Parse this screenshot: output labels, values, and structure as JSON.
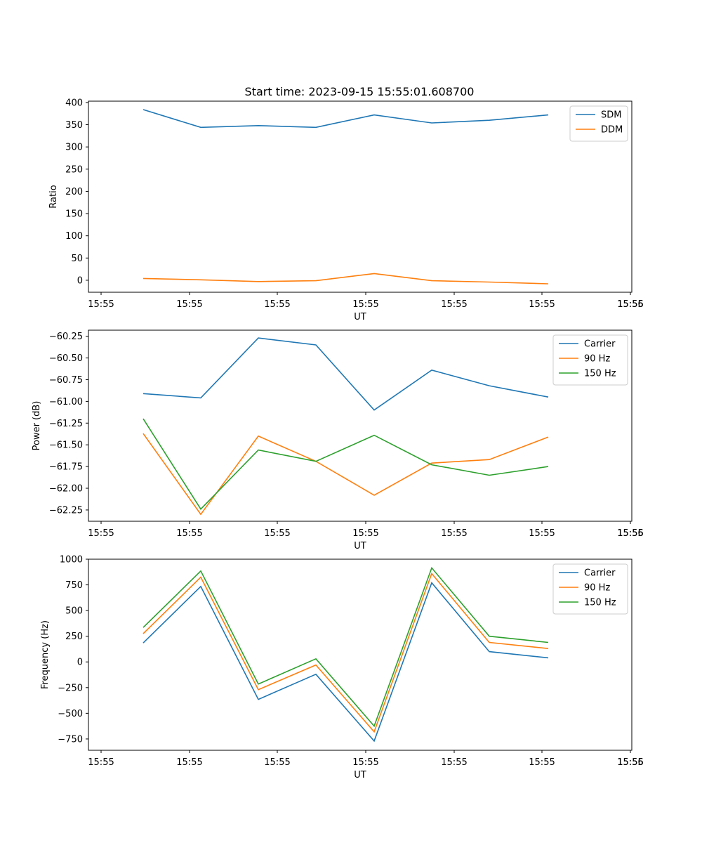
{
  "figure": {
    "title": "Start time: 2023-09-15 15:55:01.608700"
  },
  "chart_data": [
    {
      "type": "line",
      "title": "Start time: 2023-09-15 15:55:01.608700",
      "xlabel": "UT",
      "ylabel": "Ratio",
      "x_tick_labels": [
        "15:55",
        "15:55",
        "15:55",
        "15:55",
        "15:55",
        "15:55",
        "15:55"
      ],
      "x_end_tick_label": "15:56",
      "y_ticks": [
        0,
        50,
        100,
        150,
        200,
        250,
        300,
        350,
        400
      ],
      "y_tick_labels": [
        "0",
        "50",
        "100",
        "150",
        "200",
        "250",
        "300",
        "350",
        "400"
      ],
      "ylim": [
        -27,
        403
      ],
      "legend_position": "top-right",
      "series": [
        {
          "name": "SDM",
          "color": "#1f77b4",
          "values": [
            384,
            344,
            348,
            344,
            372,
            354,
            360,
            372
          ]
        },
        {
          "name": "DDM",
          "color": "#ff7f0e",
          "values": [
            4,
            1,
            -3,
            -1,
            15,
            -1,
            -4,
            -8
          ]
        }
      ]
    },
    {
      "type": "line",
      "title": "",
      "xlabel": "UT",
      "ylabel": "Power (dB)",
      "x_tick_labels": [
        "15:55",
        "15:55",
        "15:55",
        "15:55",
        "15:55",
        "15:55",
        "15:55"
      ],
      "x_end_tick_label": "15:56",
      "y_ticks": [
        -62.25,
        -62.0,
        -61.75,
        -61.5,
        -61.25,
        -61.0,
        -60.75,
        -60.5,
        -60.25
      ],
      "y_tick_labels": [
        "−62.25",
        "−62.00",
        "−61.75",
        "−61.50",
        "−61.25",
        "−61.00",
        "−60.75",
        "−60.50",
        "−60.25"
      ],
      "ylim": [
        -62.38,
        -60.18
      ],
      "legend_position": "top-right",
      "series": [
        {
          "name": "Carrier",
          "color": "#1f77b4",
          "values": [
            -60.91,
            -60.96,
            -60.27,
            -60.35,
            -61.1,
            -60.64,
            -60.82,
            -60.95
          ]
        },
        {
          "name": "90 Hz",
          "color": "#ff7f0e",
          "values": [
            -61.37,
            -62.3,
            -61.4,
            -61.69,
            -62.08,
            -61.71,
            -61.67,
            -61.41
          ]
        },
        {
          "name": "150 Hz",
          "color": "#2ca02c",
          "values": [
            -61.2,
            -62.24,
            -61.56,
            -61.69,
            -61.39,
            -61.73,
            -61.85,
            -61.75
          ]
        }
      ]
    },
    {
      "type": "line",
      "title": "",
      "xlabel": "UT",
      "ylabel": "Frequency (Hz)",
      "x_tick_labels": [
        "15:55",
        "15:55",
        "15:55",
        "15:55",
        "15:55",
        "15:55",
        "15:55"
      ],
      "x_end_tick_label": "15:56",
      "y_ticks": [
        -750,
        -500,
        -250,
        0,
        250,
        500,
        750,
        1000
      ],
      "y_tick_labels": [
        "−750",
        "−500",
        "−250",
        "0",
        "250",
        "500",
        "750",
        "1000"
      ],
      "ylim": [
        -860,
        1000
      ],
      "legend_position": "top-right",
      "series": [
        {
          "name": "Carrier",
          "color": "#1f77b4",
          "values": [
            185,
            735,
            -365,
            -120,
            -770,
            770,
            100,
            40
          ]
        },
        {
          "name": "90 Hz",
          "color": "#ff7f0e",
          "values": [
            275,
            825,
            -270,
            -30,
            -680,
            860,
            190,
            130
          ]
        },
        {
          "name": "150 Hz",
          "color": "#2ca02c",
          "values": [
            335,
            885,
            -215,
            30,
            -625,
            915,
            250,
            190
          ]
        }
      ]
    }
  ]
}
